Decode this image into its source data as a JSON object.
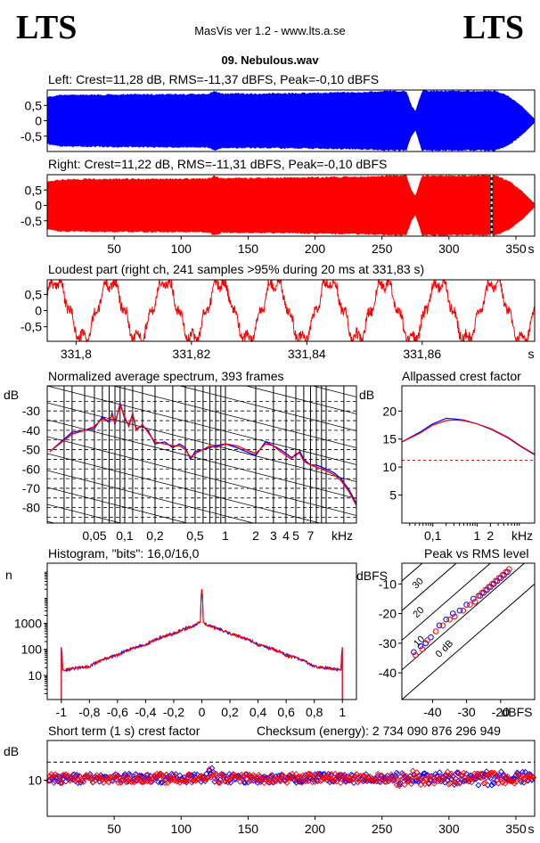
{
  "header": {
    "logo_left": "LTS",
    "logo_right": "LTS",
    "app_title": "MasVis ver 1.2 - www.lts.a.se",
    "file_name": "09. Nebulous.wav"
  },
  "colors": {
    "left": "#0000ff",
    "right": "#ff0000",
    "grid": "#000000"
  },
  "chart_data": [
    {
      "id": "left_waveform",
      "type": "area",
      "title": "Left: Crest=11,28 dB, RMS=-11,37 dBFS, Peak=-0,10 dBFS",
      "color": "#0000ff",
      "y_ticks": [
        "0,5",
        "0",
        "-0,5"
      ],
      "xlim": [
        0,
        364
      ],
      "ylim": [
        -1,
        1
      ],
      "envelope": {
        "t": [
          0,
          10,
          30,
          60,
          90,
          120,
          125,
          130,
          160,
          200,
          240,
          255,
          262,
          268,
          272,
          275,
          280,
          300,
          320,
          335,
          345,
          355,
          364
        ],
        "amp": [
          0.78,
          0.85,
          0.86,
          0.87,
          0.88,
          0.88,
          0.99,
          0.9,
          0.9,
          0.92,
          0.95,
          0.99,
          0.99,
          0.99,
          0.5,
          0.3,
          0.99,
          0.98,
          0.98,
          0.99,
          0.8,
          0.45,
          0.05
        ]
      }
    },
    {
      "id": "right_waveform",
      "type": "area",
      "title": "Right: Crest=11,22 dB, RMS=-11,31 dBFS, Peak=-0,10 dBFS",
      "color": "#ff0000",
      "y_ticks": [
        "0,5",
        "0",
        "-0,5"
      ],
      "x_ticks": [
        "50",
        "100",
        "150",
        "200",
        "250",
        "300",
        "350",
        "s"
      ],
      "x_tick_values": [
        50,
        100,
        150,
        200,
        250,
        300,
        350
      ],
      "xlim": [
        0,
        364
      ],
      "ylim": [
        -1,
        1
      ],
      "marker_at": 331.83,
      "envelope": {
        "t": [
          0,
          10,
          30,
          60,
          90,
          120,
          125,
          130,
          160,
          200,
          240,
          255,
          262,
          268,
          272,
          275,
          280,
          300,
          320,
          335,
          345,
          355,
          364
        ],
        "amp": [
          0.78,
          0.86,
          0.87,
          0.88,
          0.88,
          0.89,
          0.99,
          0.9,
          0.91,
          0.93,
          0.96,
          0.99,
          0.99,
          0.99,
          0.5,
          0.3,
          0.99,
          0.99,
          0.99,
          0.99,
          0.8,
          0.45,
          0.05
        ]
      }
    },
    {
      "id": "loudest_part",
      "type": "line",
      "title": "Loudest part (right ch, 241 samples >95% during 20 ms at 331,83 s)",
      "color": "#ff0000",
      "y_ticks": [
        "0,5",
        "0",
        "-0,5"
      ],
      "x_ticks": [
        "331,8",
        "331,82",
        "331,84",
        "331,86",
        "s"
      ],
      "x_tick_values": [
        331.8,
        331.82,
        331.84,
        331.86
      ],
      "xlim": [
        331.795,
        331.8795
      ],
      "ylim": [
        -0.95,
        0.95
      ],
      "period_s": 0.0095,
      "amplitude": 0.88
    },
    {
      "id": "spectrum",
      "type": "line",
      "title": "Normalized average spectrum, 393 frames",
      "ylabel": "dB",
      "y_ticks": [
        "-30",
        "-40",
        "-50",
        "-60",
        "-70",
        "-80"
      ],
      "y_tick_values": [
        -30,
        -40,
        -50,
        -60,
        -70,
        -80
      ],
      "ylim": [
        -88,
        -17
      ],
      "x_ticks": [
        "0,05",
        "0,1",
        "0,2",
        "0,5",
        "1",
        "2",
        "3",
        "4",
        "5",
        "7",
        "kHz"
      ],
      "x_tick_values": [
        0.05,
        0.1,
        0.2,
        0.5,
        1,
        2,
        3,
        4,
        5,
        7
      ],
      "xlim_khz": [
        0.017,
        20
      ],
      "series": [
        {
          "color": "#0000ff",
          "f": [
            0.018,
            0.03,
            0.04,
            0.05,
            0.06,
            0.07,
            0.075,
            0.08,
            0.09,
            0.1,
            0.11,
            0.12,
            0.13,
            0.15,
            0.17,
            0.2,
            0.25,
            0.3,
            0.35,
            0.4,
            0.45,
            0.5,
            0.6,
            0.7,
            0.8,
            1,
            1.3,
            1.6,
            2,
            2.5,
            3,
            3.5,
            4,
            4.5,
            5,
            5.5,
            6,
            7,
            8,
            9,
            10,
            12,
            14,
            17,
            20
          ],
          "db": [
            -51,
            -41,
            -40,
            -39,
            -33,
            -36,
            -31,
            -37,
            -26,
            -34,
            -37,
            -32,
            -39,
            -38,
            -40,
            -47,
            -46,
            -49,
            -47,
            -49,
            -55,
            -51,
            -50,
            -49,
            -48,
            -47,
            -49,
            -51,
            -53,
            -46,
            -48,
            -50,
            -52,
            -54,
            -53,
            -51,
            -55,
            -58,
            -58,
            -59,
            -60,
            -62,
            -65,
            -71,
            -78
          ]
        },
        {
          "color": "#ff0000",
          "f": [
            0.018,
            0.03,
            0.04,
            0.05,
            0.06,
            0.07,
            0.075,
            0.08,
            0.09,
            0.1,
            0.11,
            0.12,
            0.13,
            0.15,
            0.17,
            0.2,
            0.25,
            0.3,
            0.35,
            0.4,
            0.45,
            0.5,
            0.6,
            0.7,
            0.8,
            1,
            1.3,
            1.6,
            2,
            2.5,
            3,
            3.5,
            4,
            4.5,
            5,
            5.5,
            6,
            7,
            8,
            9,
            10,
            12,
            14,
            17,
            20
          ],
          "db": [
            -51,
            -42,
            -40,
            -38,
            -34,
            -35,
            -32,
            -36,
            -27,
            -33,
            -38,
            -31,
            -40,
            -37,
            -41,
            -46,
            -47,
            -48,
            -48,
            -50,
            -54,
            -52,
            -50,
            -48,
            -49,
            -47,
            -48,
            -50,
            -52,
            -47,
            -48,
            -51,
            -53,
            -55,
            -52,
            -52,
            -56,
            -58,
            -59,
            -60,
            -61,
            -63,
            -66,
            -72,
            -79
          ]
        }
      ]
    },
    {
      "id": "allpassed_crest",
      "type": "line",
      "title": "Allpassed crest factor",
      "ylabel": "dB",
      "y_ticks": [
        "20",
        "15",
        "10",
        "5"
      ],
      "y_tick_values": [
        20,
        15,
        10,
        5
      ],
      "ylim": [
        0,
        24.5
      ],
      "x_ticks": [
        "0,1",
        "1",
        "2",
        "kHz"
      ],
      "x_tick_values": [
        0.1,
        1,
        2
      ],
      "xlim_khz": [
        0.02,
        20
      ],
      "reference_db": 11.22,
      "series": [
        {
          "color": "#0000ff",
          "f": [
            0.02,
            0.05,
            0.1,
            0.2,
            0.3,
            0.5,
            1,
            2,
            5,
            10,
            20
          ],
          "db": [
            14.5,
            16.2,
            17.7,
            18.7,
            18.6,
            18.4,
            17.7,
            16.8,
            15.2,
            13.6,
            12.2
          ]
        },
        {
          "color": "#ff0000",
          "f": [
            0.02,
            0.05,
            0.1,
            0.2,
            0.3,
            0.5,
            1,
            2,
            5,
            10,
            20
          ],
          "db": [
            14.5,
            16.0,
            17.5,
            18.3,
            18.4,
            18.3,
            17.7,
            16.9,
            15.3,
            13.7,
            12.3
          ]
        }
      ]
    },
    {
      "id": "histogram",
      "type": "line",
      "title": "Histogram, \"bits\": 16,0/16,0",
      "ylabel": "n",
      "y_ticks": [
        "1000",
        "100",
        "10"
      ],
      "y_tick_values": [
        1000,
        100,
        10
      ],
      "ylim_log": [
        1.2,
        200000
      ],
      "x_ticks": [
        "-1",
        "-0,8",
        "-0,6",
        "-0,4",
        "-0,2",
        "0",
        "0,2",
        "0,4",
        "0,6",
        "0,8",
        "1"
      ],
      "x_tick_values": [
        -1,
        -0.8,
        -0.6,
        -0.4,
        -0.2,
        0,
        0.2,
        0.4,
        0.6,
        0.8,
        1
      ],
      "xlim": [
        -1.1,
        1.1
      ],
      "x": [
        -1,
        -0.99,
        -0.8,
        -0.6,
        -0.4,
        -0.2,
        -0.05,
        -0.01,
        0,
        0.01,
        0.05,
        0.2,
        0.4,
        0.6,
        0.8,
        0.99,
        1
      ],
      "n": [
        120,
        16,
        22,
        60,
        150,
        400,
        800,
        1100,
        20000,
        1100,
        800,
        400,
        150,
        60,
        22,
        16,
        120
      ]
    },
    {
      "id": "peak_vs_rms",
      "type": "scatter",
      "title": "Peak vs RMS level",
      "ylabel": "dBFS",
      "xlabel": "dBFS",
      "y_ticks": [
        "-10",
        "-20",
        "-30",
        "-40"
      ],
      "y_tick_values": [
        -10,
        -20,
        -30,
        -40
      ],
      "x_ticks": [
        "-40",
        "-30",
        "-20"
      ],
      "x_tick_values": [
        -40,
        -30,
        -20
      ],
      "xlim": [
        -49,
        -10
      ],
      "ylim": [
        -49,
        -3
      ],
      "diagonal_labels": [
        "40",
        "30",
        "20",
        "10",
        "0 dB"
      ],
      "diagonal_offsets": [
        40,
        30,
        20,
        10,
        0
      ],
      "series": [
        {
          "color": "#0000ff",
          "rms": [
            -45.5,
            -43.5,
            -42,
            -40.5,
            -38,
            -36,
            -34,
            -32,
            -30,
            -28,
            -26,
            -25,
            -24,
            -23,
            -22,
            -21,
            -20,
            -19,
            -18
          ],
          "peak": [
            -33,
            -31,
            -30,
            -28,
            -24,
            -22,
            -20,
            -19,
            -17,
            -15,
            -14,
            -13,
            -12,
            -11,
            -10,
            -9,
            -8,
            -7,
            -6
          ]
        },
        {
          "color": "#ff0000",
          "rms": [
            -45,
            -43,
            -41.5,
            -39,
            -37,
            -35,
            -33.5,
            -31,
            -29,
            -27.5,
            -26.5,
            -25.5,
            -24.5,
            -23.5,
            -22.5,
            -21.5,
            -20.5,
            -19.5,
            -18.5,
            -17.5
          ],
          "peak": [
            -34,
            -32,
            -29,
            -26,
            -24,
            -22,
            -21,
            -19,
            -17,
            -16,
            -14,
            -13,
            -12,
            -11,
            -10,
            -9,
            -8,
            -7,
            -6,
            -5
          ]
        }
      ]
    },
    {
      "id": "short_term_crest",
      "type": "scatter",
      "title": "Short term (1 s) crest factor",
      "checksum": "Checksum (energy):  2 734 090 876 296 949",
      "ylabel": "dB",
      "y_ticks": [
        "10"
      ],
      "y_tick_values": [
        10
      ],
      "ylim": [
        0,
        21
      ],
      "reference_db": 15,
      "x_ticks": [
        "50",
        "100",
        "150",
        "200",
        "250",
        "300",
        "350",
        "s"
      ],
      "x_tick_values": [
        50,
        100,
        150,
        200,
        250,
        300,
        350
      ],
      "xlim": [
        0,
        364
      ],
      "base_db": 10.5,
      "spread_db": 1.3
    }
  ]
}
